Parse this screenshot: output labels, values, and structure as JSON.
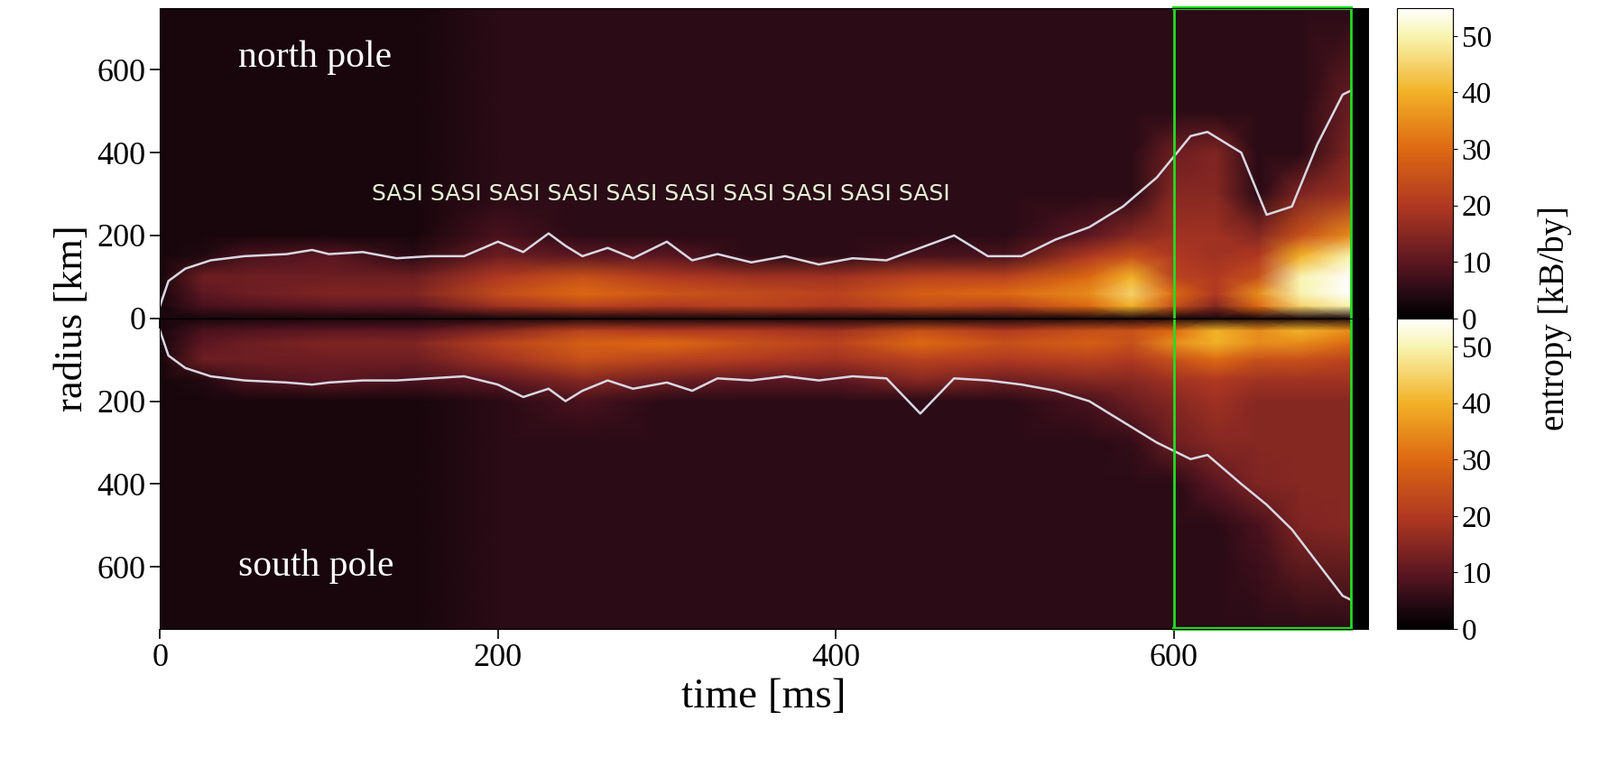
{
  "chart_data": {
    "type": "heatmap",
    "xlabel": "time [ms]",
    "ylabel": "radius [km]",
    "xlim": [
      0,
      715
    ],
    "xticks": [
      0,
      200,
      400,
      600
    ],
    "annotation": "SASI SASI SASI SASI SASI SASI SASI SASI SASI SASI",
    "highlight": {
      "x": [
        600,
        705
      ],
      "color": "#22dd22"
    },
    "colorbar": {
      "label": "entropy [kB/by]",
      "range": [
        0,
        55
      ],
      "ticks": [
        0,
        10,
        20,
        30,
        40,
        50
      ]
    },
    "time": [
      0,
      25,
      50,
      100,
      150,
      200,
      250,
      300,
      350,
      400,
      450,
      500,
      550,
      575,
      600,
      625,
      650,
      675,
      705
    ],
    "radius": [
      0,
      30,
      60,
      100,
      150,
      200,
      300,
      400,
      500,
      750
    ],
    "panels": [
      {
        "label": "north pole",
        "ylim": [
          0,
          750
        ],
        "yticks": [
          0,
          200,
          400,
          600
        ],
        "shock": {
          "color": "#d8d8e4",
          "x": [
            0,
            5,
            15,
            30,
            50,
            75,
            90,
            100,
            120,
            140,
            160,
            180,
            200,
            215,
            230,
            240,
            250,
            265,
            280,
            300,
            315,
            330,
            350,
            370,
            390,
            410,
            430,
            450,
            470,
            490,
            510,
            530,
            550,
            570,
            590,
            610,
            620,
            640,
            655,
            670,
            685,
            700,
            705
          ],
          "values": [
            30,
            90,
            120,
            140,
            150,
            155,
            165,
            155,
            160,
            145,
            150,
            150,
            185,
            160,
            205,
            175,
            150,
            170,
            145,
            185,
            140,
            155,
            135,
            150,
            130,
            145,
            140,
            170,
            200,
            150,
            150,
            190,
            220,
            270,
            340,
            440,
            450,
            400,
            250,
            270,
            420,
            540,
            550
          ]
        },
        "entropy": [
          [
            3,
            3,
            3,
            3,
            3,
            3,
            3,
            3,
            3,
            3,
            3,
            3,
            3,
            3,
            3,
            3,
            3,
            3,
            3
          ],
          [
            3,
            8,
            9,
            10,
            10,
            18,
            22,
            20,
            22,
            20,
            24,
            22,
            30,
            40,
            25,
            15,
            30,
            45,
            50
          ],
          [
            3,
            10,
            12,
            14,
            14,
            24,
            30,
            26,
            24,
            22,
            28,
            30,
            35,
            45,
            30,
            20,
            35,
            50,
            55
          ],
          [
            3,
            12,
            12,
            12,
            12,
            20,
            25,
            20,
            18,
            18,
            22,
            22,
            30,
            40,
            22,
            20,
            25,
            50,
            55
          ],
          [
            3,
            4,
            8,
            10,
            5,
            12,
            10,
            10,
            5,
            5,
            8,
            8,
            20,
            25,
            20,
            18,
            20,
            40,
            50
          ],
          [
            3,
            3,
            3,
            3,
            3,
            8,
            5,
            5,
            5,
            5,
            5,
            5,
            10,
            15,
            18,
            18,
            15,
            25,
            35
          ],
          [
            3,
            3,
            3,
            3,
            3,
            5,
            5,
            5,
            5,
            5,
            5,
            5,
            5,
            5,
            15,
            15,
            5,
            14,
            18
          ],
          [
            3,
            3,
            3,
            3,
            3,
            5,
            5,
            5,
            5,
            5,
            5,
            5,
            5,
            5,
            12,
            14,
            5,
            5,
            14
          ],
          [
            3,
            3,
            3,
            3,
            3,
            5,
            5,
            5,
            5,
            5,
            5,
            5,
            5,
            5,
            5,
            5,
            5,
            5,
            12
          ],
          [
            3,
            3,
            3,
            3,
            3,
            5,
            5,
            5,
            5,
            5,
            5,
            5,
            5,
            5,
            5,
            5,
            5,
            5,
            5
          ]
        ]
      },
      {
        "label": "south pole",
        "ylim": [
          0,
          750
        ],
        "yticks": [
          200,
          400,
          600
        ],
        "shock": {
          "color": "#d8d8e4",
          "x": [
            0,
            5,
            15,
            30,
            50,
            75,
            90,
            100,
            120,
            140,
            160,
            180,
            200,
            215,
            230,
            240,
            250,
            265,
            280,
            300,
            315,
            330,
            350,
            370,
            390,
            410,
            430,
            450,
            470,
            490,
            510,
            530,
            550,
            570,
            590,
            610,
            620,
            640,
            655,
            670,
            685,
            700,
            705
          ],
          "values": [
            30,
            90,
            120,
            140,
            150,
            155,
            160,
            155,
            150,
            150,
            145,
            140,
            160,
            190,
            170,
            200,
            175,
            150,
            170,
            155,
            175,
            145,
            150,
            140,
            150,
            140,
            145,
            230,
            145,
            150,
            160,
            175,
            200,
            250,
            300,
            340,
            330,
            400,
            450,
            510,
            590,
            670,
            680
          ]
        },
        "entropy": [
          [
            3,
            3,
            3,
            3,
            3,
            3,
            3,
            3,
            3,
            3,
            3,
            3,
            3,
            3,
            3,
            3,
            3,
            3,
            3
          ],
          [
            3,
            8,
            9,
            10,
            10,
            15,
            22,
            20,
            20,
            18,
            25,
            20,
            25,
            25,
            30,
            40,
            35,
            40,
            35
          ],
          [
            3,
            10,
            12,
            14,
            14,
            22,
            28,
            30,
            25,
            22,
            30,
            25,
            28,
            25,
            35,
            40,
            35,
            35,
            30
          ],
          [
            3,
            12,
            12,
            12,
            12,
            18,
            25,
            22,
            20,
            18,
            22,
            20,
            22,
            20,
            25,
            30,
            25,
            25,
            22
          ],
          [
            3,
            4,
            8,
            10,
            8,
            10,
            15,
            12,
            10,
            10,
            15,
            12,
            15,
            15,
            18,
            20,
            18,
            18,
            18
          ],
          [
            3,
            3,
            3,
            3,
            3,
            5,
            8,
            5,
            5,
            5,
            5,
            5,
            8,
            12,
            15,
            18,
            15,
            15,
            15
          ],
          [
            3,
            3,
            3,
            3,
            3,
            5,
            5,
            5,
            5,
            5,
            5,
            5,
            5,
            6,
            12,
            15,
            15,
            15,
            15
          ],
          [
            3,
            3,
            3,
            3,
            3,
            5,
            5,
            5,
            5,
            5,
            5,
            5,
            5,
            5,
            5,
            10,
            14,
            15,
            15
          ],
          [
            3,
            3,
            3,
            3,
            3,
            5,
            5,
            5,
            5,
            5,
            5,
            5,
            5,
            5,
            5,
            5,
            8,
            14,
            15
          ],
          [
            3,
            3,
            3,
            3,
            3,
            5,
            5,
            5,
            5,
            5,
            5,
            5,
            5,
            5,
            5,
            5,
            5,
            5,
            5
          ]
        ]
      }
    ]
  }
}
